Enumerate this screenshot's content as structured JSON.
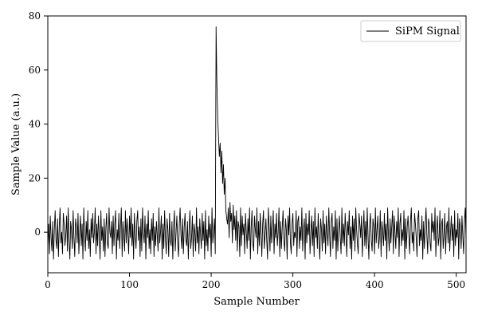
{
  "chart_data": {
    "type": "line",
    "title": "",
    "xlabel": "Sample Number",
    "ylabel": "Sample Value (a.u.)",
    "xlim": [
      0,
      512
    ],
    "ylim": [
      -15,
      80
    ],
    "x_ticks": [
      0,
      100,
      200,
      300,
      400,
      500
    ],
    "y_ticks": [
      0,
      20,
      40,
      60,
      80
    ],
    "grid": false,
    "legend_position": "top-right",
    "series": [
      {
        "name": "SiPM Signal",
        "color": "#000000",
        "x_start": 0,
        "x_step": 1,
        "values": [
          -5,
          3,
          -8,
          6,
          -2,
          -7,
          4,
          -10,
          1,
          8,
          -3,
          -6,
          5,
          -9,
          2,
          9,
          -4,
          0,
          -8,
          7,
          3,
          -5,
          -1,
          6,
          -7,
          9,
          -3,
          -10,
          4,
          1,
          -6,
          8,
          -2,
          -9,
          5,
          2,
          -4,
          7,
          -8,
          0,
          6,
          -5,
          3,
          -10,
          9,
          -1,
          -7,
          4,
          -3,
          8,
          -6,
          1,
          -9,
          5,
          -2,
          7,
          -4,
          0,
          9,
          -8,
          3,
          -5,
          6,
          -1,
          -10,
          8,
          -3,
          2,
          -7,
          5,
          -9,
          1,
          7,
          -4,
          -6,
          9,
          0,
          -2,
          4,
          -8,
          6,
          -5,
          3,
          8,
          -10,
          1,
          -3,
          7,
          -6,
          2,
          9,
          -9,
          4,
          -1,
          -7,
          8,
          -4,
          5,
          0,
          -8,
          6,
          -2,
          9,
          -5,
          3,
          -10,
          7,
          -1,
          -6,
          4,
          8,
          -3,
          2,
          -9,
          5,
          -7,
          9,
          0,
          -4,
          6,
          -10,
          3,
          -2,
          8,
          -6,
          1,
          -8,
          5,
          -3,
          7,
          -9,
          2,
          -5,
          4,
          -1,
          -7,
          9,
          -4,
          0,
          6,
          -10,
          3,
          -6,
          8,
          -2,
          -8,
          5,
          1,
          -9,
          7,
          -3,
          -5,
          4,
          -10,
          2,
          8,
          -7,
          0,
          6,
          -4,
          -9,
          3,
          9,
          -1,
          -6,
          5,
          -8,
          2,
          7,
          -3,
          -5,
          4,
          -10,
          1,
          8,
          -6,
          -2,
          6,
          -9,
          3,
          0,
          -7,
          9,
          -4,
          2,
          -8,
          5,
          -1,
          -6,
          7,
          -3,
          4,
          -10,
          8,
          -5,
          1,
          -7,
          6,
          -2,
          3,
          -9,
          9,
          -4,
          0,
          5,
          -8,
          76,
          55,
          42,
          35,
          28,
          33,
          22,
          30,
          18,
          25,
          14,
          20,
          8,
          5,
          3,
          9,
          -2,
          11,
          4,
          7,
          -4,
          10,
          1,
          6,
          -3,
          8,
          -7,
          4,
          2,
          -9,
          9,
          -5,
          6,
          -1,
          3,
          -8,
          7,
          0,
          -6,
          5,
          -3,
          9,
          -10,
          2,
          8,
          -4,
          -7,
          6,
          1,
          -2,
          9,
          -8,
          4,
          -5,
          7,
          0,
          -9,
          3,
          8,
          -6,
          -1,
          5,
          -3,
          -10,
          9,
          2,
          -7,
          6,
          -4,
          1,
          8,
          -8,
          3,
          -2,
          7,
          -5,
          0,
          9,
          -9,
          4,
          -6,
          2,
          8,
          -3,
          -7,
          5,
          1,
          -10,
          6,
          -1,
          9,
          -4,
          -8,
          3,
          7,
          -5,
          0,
          -2,
          8,
          -9,
          4,
          6,
          -6,
          2,
          -3,
          9,
          -7,
          1,
          5,
          -10,
          7,
          -4,
          3,
          -1,
          8,
          -8,
          0,
          6,
          -5,
          4,
          -9,
          9,
          -2,
          2,
          -6,
          7,
          -3,
          -10,
          5,
          1,
          -7,
          8,
          -4,
          3,
          -8,
          6,
          0,
          -5,
          9,
          -1,
          -9,
          4,
          7,
          -6,
          2,
          -3,
          8,
          -10,
          5,
          -7,
          1,
          6,
          -2,
          -8,
          9,
          -4,
          3,
          -5,
          7,
          0,
          -9,
          4,
          -1,
          8,
          -6,
          2,
          -10,
          6,
          -3,
          5,
          -7,
          9,
          1,
          -4,
          -8,
          7,
          3,
          -2,
          6,
          -9,
          0,
          8,
          -5,
          4,
          -6,
          9,
          -1,
          -10,
          3,
          7,
          -3,
          -7,
          5,
          2,
          -8,
          9,
          -4,
          1,
          6,
          -6,
          -2,
          8,
          -9,
          4,
          0,
          -5,
          7,
          -3,
          3,
          -10,
          9,
          -1,
          -7,
          5,
          -4,
          2,
          8,
          -8,
          6,
          0,
          -6,
          4,
          -2,
          9,
          -9,
          3,
          7,
          -5,
          1,
          -3,
          8,
          -10,
          5,
          -6,
          2,
          6,
          -1,
          -8,
          4,
          9,
          -4,
          0,
          -7,
          7,
          3,
          -2,
          -9,
          5,
          8,
          -5,
          1,
          -3,
          6,
          -10,
          4,
          -6,
          2,
          9,
          -1,
          -8,
          5,
          3,
          -4,
          -7,
          7,
          0,
          4,
          -3,
          9,
          -9,
          1,
          6,
          -5,
          -2,
          8,
          -10,
          3,
          5,
          -6,
          -1,
          7,
          -8,
          2,
          4,
          -4,
          9,
          -7,
          0,
          6,
          -3,
          3,
          -9,
          8,
          -5,
          1,
          -2,
          7,
          -10,
          5,
          2,
          -6,
          6,
          -1,
          -8,
          4,
          9,
          -3
        ]
      }
    ]
  }
}
